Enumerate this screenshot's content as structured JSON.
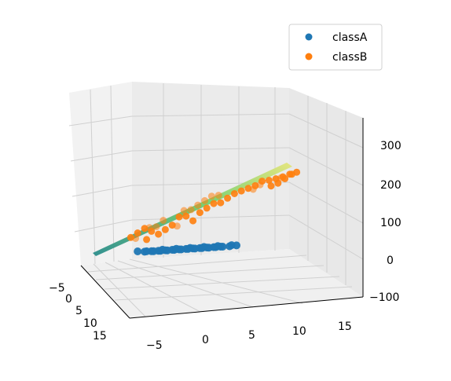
{
  "chart_data": {
    "type": "scatter",
    "projection": "3d",
    "title": "",
    "xlabel": "",
    "ylabel": "",
    "zlabel": "",
    "grid": true,
    "legend_position": "top-right",
    "x_ticks": [
      "−5",
      "0",
      "5",
      "10",
      "15"
    ],
    "y_ticks": [
      "−5",
      "0",
      "5",
      "10",
      "15"
    ],
    "z_ticks": [
      "−100",
      "0",
      "100",
      "200",
      "300"
    ],
    "xlim": [
      -8,
      18
    ],
    "ylim": [
      -8,
      18
    ],
    "zlim": [
      -120,
      340
    ],
    "colors": {
      "classA": "#1f77b4",
      "classB": "#ff7f0e",
      "surface_low": "#2a8c8c",
      "surface_high": "#e5e57a"
    },
    "series": [
      {
        "name": "classA",
        "color": "#1f77b4",
        "points": [
          [
            -6,
            -6,
            60
          ],
          [
            -5,
            -5,
            62
          ],
          [
            -4,
            -4,
            66
          ],
          [
            -3,
            -3,
            70
          ],
          [
            -2,
            -2,
            74
          ],
          [
            -1,
            -1,
            78
          ],
          [
            0,
            0,
            82
          ],
          [
            1,
            1,
            86
          ],
          [
            2,
            2,
            90
          ],
          [
            3,
            3,
            94
          ],
          [
            4,
            4,
            98
          ],
          [
            5,
            5,
            102
          ],
          [
            6,
            6,
            106
          ],
          [
            -5,
            -6,
            58
          ],
          [
            -4,
            -5,
            61
          ],
          [
            -3,
            -4,
            65
          ],
          [
            -2,
            -3,
            69
          ],
          [
            -1,
            -2,
            73
          ],
          [
            0,
            -1,
            77
          ],
          [
            1,
            0,
            81
          ],
          [
            2,
            1,
            85
          ],
          [
            3,
            2,
            89
          ],
          [
            4,
            3,
            93
          ],
          [
            5,
            4,
            97
          ],
          [
            6,
            5,
            101
          ],
          [
            7,
            6,
            105
          ],
          [
            -3,
            -5,
            63
          ],
          [
            -1,
            -3,
            71
          ],
          [
            1,
            -1,
            79
          ],
          [
            3,
            1,
            87
          ],
          [
            5,
            3,
            95
          ],
          [
            7,
            5,
            103
          ],
          [
            8,
            7,
            110
          ]
        ]
      },
      {
        "name": "classB",
        "color": "#ff7f0e",
        "points": [
          [
            -7,
            -7,
            95
          ],
          [
            -6,
            -6,
            110
          ],
          [
            -6,
            -5,
            100
          ],
          [
            -5,
            -5,
            125
          ],
          [
            -5,
            -6,
            90
          ],
          [
            -4,
            -4,
            120
          ],
          [
            -4,
            -3,
            135
          ],
          [
            -3,
            -3,
            115
          ],
          [
            -3,
            -2,
            140
          ],
          [
            -2,
            -2,
            130
          ],
          [
            -2,
            -1,
            160
          ],
          [
            -1,
            -1,
            145
          ],
          [
            0,
            0,
            170
          ],
          [
            0,
            1,
            150
          ],
          [
            1,
            1,
            175
          ],
          [
            1,
            2,
            195
          ],
          [
            2,
            2,
            165
          ],
          [
            2,
            3,
            200
          ],
          [
            3,
            3,
            190
          ],
          [
            3,
            4,
            215
          ],
          [
            4,
            4,
            205
          ],
          [
            4,
            5,
            230
          ],
          [
            5,
            5,
            220
          ],
          [
            5,
            6,
            245
          ],
          [
            6,
            6,
            225
          ],
          [
            6,
            7,
            250
          ],
          [
            7,
            7,
            240
          ],
          [
            8,
            8,
            255
          ],
          [
            9,
            9,
            265
          ],
          [
            10,
            10,
            275
          ],
          [
            11,
            11,
            285
          ],
          [
            12,
            12,
            300
          ],
          [
            13,
            13,
            305
          ],
          [
            14,
            14,
            312
          ],
          [
            15,
            15,
            320
          ],
          [
            16,
            16,
            330
          ],
          [
            14,
            13,
            295
          ],
          [
            15,
            14,
            310
          ],
          [
            13,
            12,
            285
          ],
          [
            16,
            15,
            325
          ],
          [
            12,
            13,
            295
          ],
          [
            17,
            17,
            338
          ],
          [
            11,
            12,
            280
          ],
          [
            15,
            16,
            322
          ]
        ]
      }
    ]
  }
}
